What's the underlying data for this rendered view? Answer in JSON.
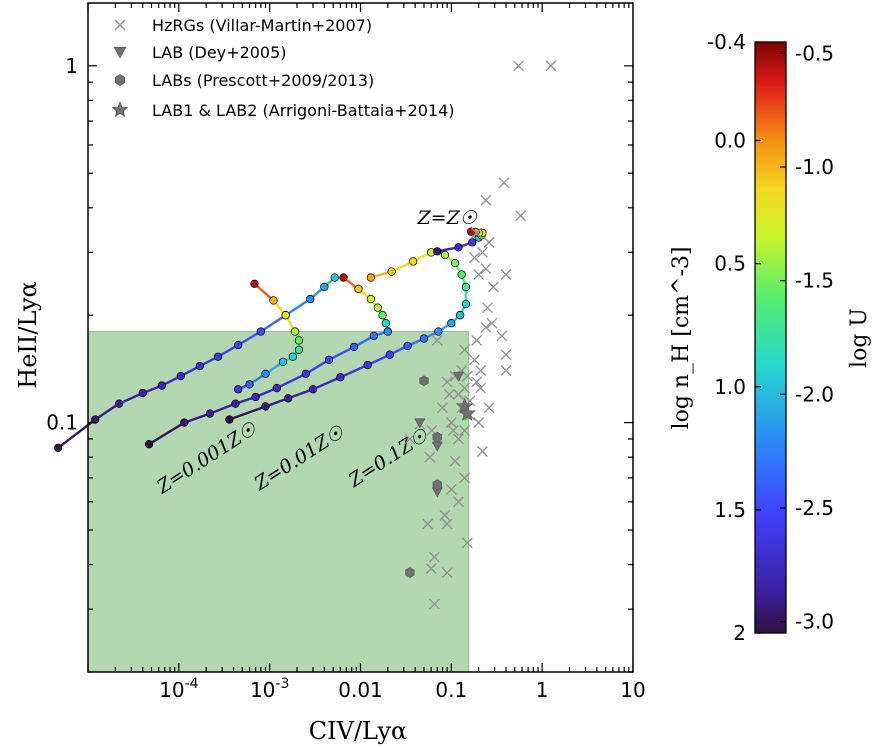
{
  "chart_data": {
    "type": "scatter",
    "xscale": "log",
    "yscale": "log",
    "xlim": [
      1e-05,
      10
    ],
    "ylim": [
      0.02,
      1.5
    ],
    "xlabel": "CIV/Lyα",
    "ylabel": "HeII/Lyα",
    "xticks": [
      {
        "value": 0.0001,
        "label": "10",
        "sup": "-4"
      },
      {
        "value": 0.001,
        "label": "10",
        "sup": "-3"
      },
      {
        "value": 0.01,
        "label": "0.01",
        "sup": ""
      },
      {
        "value": 0.1,
        "label": "0.1",
        "sup": ""
      },
      {
        "value": 1,
        "label": "1",
        "sup": ""
      },
      {
        "value": 10,
        "label": "10",
        "sup": ""
      }
    ],
    "yticks": [
      {
        "value": 0.1,
        "label": "0.1"
      },
      {
        "value": 1,
        "label": "1"
      }
    ],
    "shaded_region": {
      "x": [
        1e-05,
        0.155
      ],
      "y": [
        0.02,
        0.18
      ],
      "color": "#b3d8b1"
    },
    "legend": [
      {
        "marker": "cross",
        "label": "HzRGs (Villar-Martin+2007)"
      },
      {
        "marker": "triangle-down",
        "label": "LAB (Dey+2005)"
      },
      {
        "marker": "hexagon",
        "label": "LABs (Prescott+2009/2013)"
      },
      {
        "marker": "star",
        "label": "LAB1 & LAB2 (Arrigoni-Battaia+2014)"
      }
    ],
    "hzrgs": [
      [
        0.55,
        1.0
      ],
      [
        1.25,
        1.0
      ],
      [
        0.38,
        0.47
      ],
      [
        0.58,
        0.38
      ],
      [
        0.24,
        0.42
      ],
      [
        0.19,
        0.34
      ],
      [
        0.26,
        0.32
      ],
      [
        0.22,
        0.3
      ],
      [
        0.18,
        0.29
      ],
      [
        0.24,
        0.27
      ],
      [
        0.4,
        0.26
      ],
      [
        0.2,
        0.26
      ],
      [
        0.29,
        0.24
      ],
      [
        0.25,
        0.21
      ],
      [
        0.28,
        0.19
      ],
      [
        0.24,
        0.185
      ],
      [
        0.36,
        0.175
      ],
      [
        0.19,
        0.17
      ],
      [
        0.07,
        0.17
      ],
      [
        0.14,
        0.16
      ],
      [
        0.4,
        0.155
      ],
      [
        0.18,
        0.15
      ],
      [
        0.13,
        0.14
      ],
      [
        0.21,
        0.14
      ],
      [
        0.4,
        0.14
      ],
      [
        0.11,
        0.135
      ],
      [
        0.15,
        0.135
      ],
      [
        0.09,
        0.13
      ],
      [
        0.19,
        0.13
      ],
      [
        0.14,
        0.125
      ],
      [
        0.21,
        0.125
      ],
      [
        0.095,
        0.12
      ],
      [
        0.12,
        0.12
      ],
      [
        0.16,
        0.115
      ],
      [
        0.08,
        0.11
      ],
      [
        0.13,
        0.11
      ],
      [
        0.26,
        0.11
      ],
      [
        0.16,
        0.105
      ],
      [
        0.1,
        0.1
      ],
      [
        0.2,
        0.1
      ],
      [
        0.045,
        0.099
      ],
      [
        0.061,
        0.095
      ],
      [
        0.105,
        0.095
      ],
      [
        0.14,
        0.095
      ],
      [
        0.07,
        0.09
      ],
      [
        0.12,
        0.09
      ],
      [
        0.22,
        0.083
      ],
      [
        0.035,
        0.09
      ],
      [
        0.11,
        0.078
      ],
      [
        0.058,
        0.08
      ],
      [
        0.1,
        0.065
      ],
      [
        0.14,
        0.07
      ],
      [
        0.085,
        0.055
      ],
      [
        0.12,
        0.06
      ],
      [
        0.055,
        0.052
      ],
      [
        0.09,
        0.052
      ],
      [
        0.15,
        0.046
      ],
      [
        0.065,
        0.042
      ],
      [
        0.06,
        0.039
      ],
      [
        0.09,
        0.038
      ],
      [
        0.065,
        0.031
      ]
    ],
    "lab_dey": [
      [
        0.12,
        0.135
      ],
      [
        0.14,
        0.11
      ],
      [
        0.045,
        0.1
      ],
      [
        0.07,
        0.086
      ],
      [
        0.07,
        0.064
      ]
    ],
    "labs_prescott": [
      [
        0.05,
        0.131
      ],
      [
        0.07,
        0.091
      ],
      [
        0.07,
        0.067
      ],
      [
        0.035,
        0.038
      ]
    ],
    "lab1_lab2": [
      [
        0.14,
        0.111
      ],
      [
        0.15,
        0.106
      ]
    ],
    "colorbar": {
      "label_left": "log n_H [cm^-3]",
      "label_right": "log U",
      "left_ticks": [
        {
          "value": -0.4,
          "label": "-0.4"
        },
        {
          "value": 0.0,
          "label": "0.0"
        },
        {
          "value": 0.5,
          "label": "0.5"
        },
        {
          "value": 1.0,
          "label": "1.0"
        },
        {
          "value": 1.5,
          "label": "1.5"
        },
        {
          "value": 2.0,
          "label": "2"
        }
      ],
      "right_ticks": [
        {
          "value": -0.5,
          "label": "-0.5"
        },
        {
          "value": -1.0,
          "label": "-1.0"
        },
        {
          "value": -1.5,
          "label": "-1.5"
        },
        {
          "value": -2.0,
          "label": "-2.0"
        },
        {
          "value": -2.5,
          "label": "-2.5"
        },
        {
          "value": -3.0,
          "label": "-3.0"
        }
      ],
      "nh_range": [
        -0.4,
        2.0
      ],
      "logu_range": [
        -0.45,
        -3.05
      ]
    },
    "models": [
      {
        "name": "Z=0.001Z☉",
        "label_at": [
          0.00022,
          0.077
        ],
        "points": [
          [
            4.7e-06,
            0.085,
            2.0
          ],
          [
            1.2e-05,
            0.102,
            1.9
          ],
          [
            2.2e-05,
            0.113,
            1.85
          ],
          [
            4e-05,
            0.121,
            1.8
          ],
          [
            6.5e-05,
            0.127,
            1.75
          ],
          [
            0.000105,
            0.135,
            1.7
          ],
          [
            0.00017,
            0.144,
            1.65
          ],
          [
            0.00027,
            0.153,
            1.6
          ],
          [
            0.00045,
            0.165,
            1.5
          ],
          [
            0.0008,
            0.18,
            1.45
          ],
          [
            0.0015,
            0.2,
            1.3
          ],
          [
            0.0028,
            0.222,
            1.2
          ],
          [
            0.004,
            0.24,
            1.1
          ],
          [
            0.0052,
            0.255,
            1.0
          ]
        ],
        "branch": [
          [
            0.00045,
            0.124,
            1.6
          ],
          [
            0.0006,
            0.128,
            1.4
          ],
          [
            0.0009,
            0.137,
            1.2
          ],
          [
            0.0014,
            0.148,
            1.0
          ],
          [
            0.0018,
            0.153,
            0.9
          ],
          [
            0.0021,
            0.16,
            0.8
          ],
          [
            0.0021,
            0.17,
            0.6
          ],
          [
            0.0019,
            0.18,
            0.45
          ],
          [
            0.0015,
            0.2,
            0.3
          ],
          [
            0.0011,
            0.22,
            0.1
          ],
          [
            0.00068,
            0.245,
            -0.3
          ]
        ]
      },
      {
        "name": "Z=0.01Z☉",
        "label_at": [
          0.0023,
          0.077
        ],
        "points": [
          [
            4.7e-05,
            0.087,
            2.0
          ],
          [
            0.000115,
            0.1,
            1.9
          ],
          [
            0.00022,
            0.106,
            1.85
          ],
          [
            0.00042,
            0.113,
            1.8
          ],
          [
            0.0007,
            0.118,
            1.75
          ],
          [
            0.0012,
            0.125,
            1.7
          ],
          [
            0.0025,
            0.137,
            1.6
          ],
          [
            0.0045,
            0.15,
            1.5
          ],
          [
            0.0085,
            0.163,
            1.4
          ],
          [
            0.014,
            0.175,
            1.3
          ],
          [
            0.02,
            0.18,
            1.2
          ]
        ],
        "branch": [
          [
            0.02,
            0.18,
            1.2
          ],
          [
            0.019,
            0.19,
            0.9
          ],
          [
            0.0175,
            0.2,
            0.6
          ],
          [
            0.0155,
            0.21,
            0.45
          ],
          [
            0.013,
            0.222,
            0.35
          ],
          [
            0.0095,
            0.237,
            0.15
          ],
          [
            0.0065,
            0.255,
            -0.3
          ]
        ]
      },
      {
        "name": "Z=0.1Z☉",
        "label_at": [
          0.022,
          0.077
        ],
        "points": [
          [
            0.00036,
            0.102,
            2.0
          ],
          [
            0.0009,
            0.111,
            1.9
          ],
          [
            0.0016,
            0.117,
            1.85
          ],
          [
            0.003,
            0.124,
            1.8
          ],
          [
            0.006,
            0.134,
            1.7
          ],
          [
            0.012,
            0.145,
            1.6
          ],
          [
            0.021,
            0.155,
            1.5
          ],
          [
            0.033,
            0.164,
            1.4
          ],
          [
            0.05,
            0.172,
            1.3
          ],
          [
            0.072,
            0.18,
            1.2
          ],
          [
            0.1,
            0.19,
            1.1
          ],
          [
            0.125,
            0.2,
            1.0
          ]
        ],
        "branch": []
      },
      {
        "name": "Z=Z☉",
        "label_at": [
          0.09,
          0.36
        ],
        "points": [
          [
            0.125,
            0.2,
            1.0
          ],
          [
            0.145,
            0.215,
            0.9
          ],
          [
            0.145,
            0.24,
            0.75
          ],
          [
            0.13,
            0.26,
            0.65
          ],
          [
            0.11,
            0.28,
            0.55
          ],
          [
            0.085,
            0.295,
            0.45
          ],
          [
            0.06,
            0.3,
            0.35
          ],
          [
            0.038,
            0.283,
            0.25
          ],
          [
            0.022,
            0.265,
            0.15
          ],
          [
            0.013,
            0.255,
            0.05
          ]
        ],
        "top_points": [
          [
            0.07,
            0.302,
            1.9
          ],
          [
            0.12,
            0.31,
            1.7
          ],
          [
            0.17,
            0.32,
            1.6
          ],
          [
            0.2,
            0.33,
            1.0
          ],
          [
            0.215,
            0.335,
            0.55
          ],
          [
            0.22,
            0.34,
            0.35
          ],
          [
            0.2,
            0.34,
            0.2
          ],
          [
            0.185,
            0.342,
            0.05
          ],
          [
            0.165,
            0.343,
            -0.3
          ]
        ]
      }
    ]
  }
}
